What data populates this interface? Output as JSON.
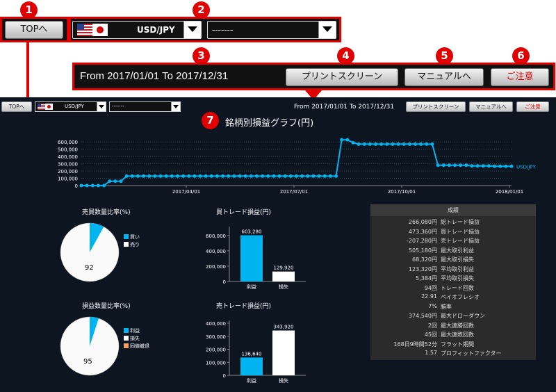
{
  "callouts": [
    "1",
    "2",
    "3",
    "4",
    "5",
    "6",
    "7"
  ],
  "top_button": "TOPへ",
  "currency_select": "USD/JPY",
  "second_select": "-------",
  "period_text": "From 2017/01/01 To 2017/12/31",
  "print_button": "プリントスクリーン",
  "manual_button": "マニュアルへ",
  "caution_button": "ご注意",
  "colors": {
    "accent": "#00b4f0",
    "callout": "#e10000",
    "bg": "#0d1521"
  },
  "line_chart": {
    "title": "銘柄別損益グラフ(円)",
    "series_label": "USD/JPY",
    "y_ticks": [
      "600,000",
      "500,000",
      "400,000",
      "300,000",
      "200,000",
      "100,000",
      "0"
    ],
    "x_ticks": [
      "2017/04/01",
      "2017/07/01",
      "2017/10/01",
      "2018/01/01"
    ]
  },
  "pie1": {
    "title": "売買数量比率(%)",
    "center_value": "92",
    "legend": [
      "買い",
      "売り"
    ]
  },
  "pie2": {
    "title": "損益数量比率(%)",
    "center_value": "95",
    "legend": [
      "利益",
      "損失",
      "同値撤退"
    ]
  },
  "bar1": {
    "title": "買トレード損益(円)",
    "y_ticks": [
      "600,000",
      "400,000",
      "200,000",
      "0"
    ],
    "bars": [
      {
        "label": "利益",
        "value_text": "603,280"
      },
      {
        "label": "損失",
        "value_text": "129,920"
      }
    ]
  },
  "bar2": {
    "title": "売トレード損益(円)",
    "y_ticks": [
      "400,000",
      "300,000",
      "200,000",
      "100,000",
      "0"
    ],
    "bars": [
      {
        "label": "利益",
        "value_text": "136,640"
      },
      {
        "label": "損失",
        "value_text": "343,920"
      }
    ]
  },
  "results": {
    "header": "成績",
    "rows": [
      {
        "value": "266,080円",
        "label": "総トレード損益"
      },
      {
        "value": "473,360円",
        "label": "買トレード損益"
      },
      {
        "value": "-207,280円",
        "label": "売トレード損益"
      },
      {
        "value": "505,180円",
        "label": "最大取引利益"
      },
      {
        "value": "68,320円",
        "label": "最大取引損失"
      },
      {
        "value": "123,320円",
        "label": "平均取引利益"
      },
      {
        "value": "5,384円",
        "label": "平均取引損失"
      },
      {
        "value": "94回",
        "label": "トレード回数"
      },
      {
        "value": "22.91",
        "label": "ペイオフレシオ"
      },
      {
        "value": "7%",
        "label": "勝率"
      },
      {
        "value": "374,540円",
        "label": "最大ドローダウン"
      },
      {
        "value": "2回",
        "label": "最大連勝回数"
      },
      {
        "value": "45回",
        "label": "最大連敗回数"
      },
      {
        "value": "168日9時間52分",
        "label": "フラット期間"
      },
      {
        "value": "1.57",
        "label": "プロフィットファクター"
      }
    ]
  },
  "chart_data": [
    {
      "type": "line",
      "title": "銘柄別損益グラフ(円)",
      "series": [
        {
          "name": "USD/JPY",
          "values": [
            0,
            0,
            0,
            0,
            0,
            60000,
            60000,
            60000,
            130000,
            130000,
            130000,
            130000,
            130000,
            130000,
            130000,
            130000,
            130000,
            130000,
            130000,
            130000,
            130000,
            130000,
            130000,
            130000,
            130000,
            130000,
            130000,
            130000,
            130000,
            130000,
            130000,
            130000,
            130000,
            130000,
            130000,
            130000,
            130000,
            130000,
            130000,
            130000,
            130000,
            130000,
            130000,
            130000,
            130000,
            130000,
            630000,
            630000,
            590000,
            570000,
            570000,
            570000,
            570000,
            570000,
            570000,
            570000,
            570000,
            570000,
            570000,
            570000,
            570000,
            570000,
            570000,
            280000,
            280000,
            280000,
            280000,
            280000,
            280000,
            270000,
            270000,
            270000,
            270000,
            265000,
            265000,
            265000,
            265000
          ]
        }
      ],
      "x_range": [
        "2017/01/01",
        "2018/01/01"
      ],
      "ylim": [
        0,
        650000
      ],
      "grid": true
    },
    {
      "type": "pie",
      "title": "売買数量比率(%)",
      "labels": [
        "買い",
        "売り"
      ],
      "values": [
        8,
        92
      ]
    },
    {
      "type": "pie",
      "title": "損益数量比率(%)",
      "labels": [
        "利益",
        "損失",
        "同値撤退"
      ],
      "values": [
        5,
        95,
        0
      ]
    },
    {
      "type": "bar",
      "title": "買トレード損益(円)",
      "categories": [
        "利益",
        "損失"
      ],
      "values": [
        603280,
        129920
      ],
      "ylim": [
        0,
        680000
      ]
    },
    {
      "type": "bar",
      "title": "売トレード損益(円)",
      "categories": [
        "利益",
        "損失"
      ],
      "values": [
        136640,
        343920
      ],
      "ylim": [
        0,
        400000
      ]
    }
  ]
}
